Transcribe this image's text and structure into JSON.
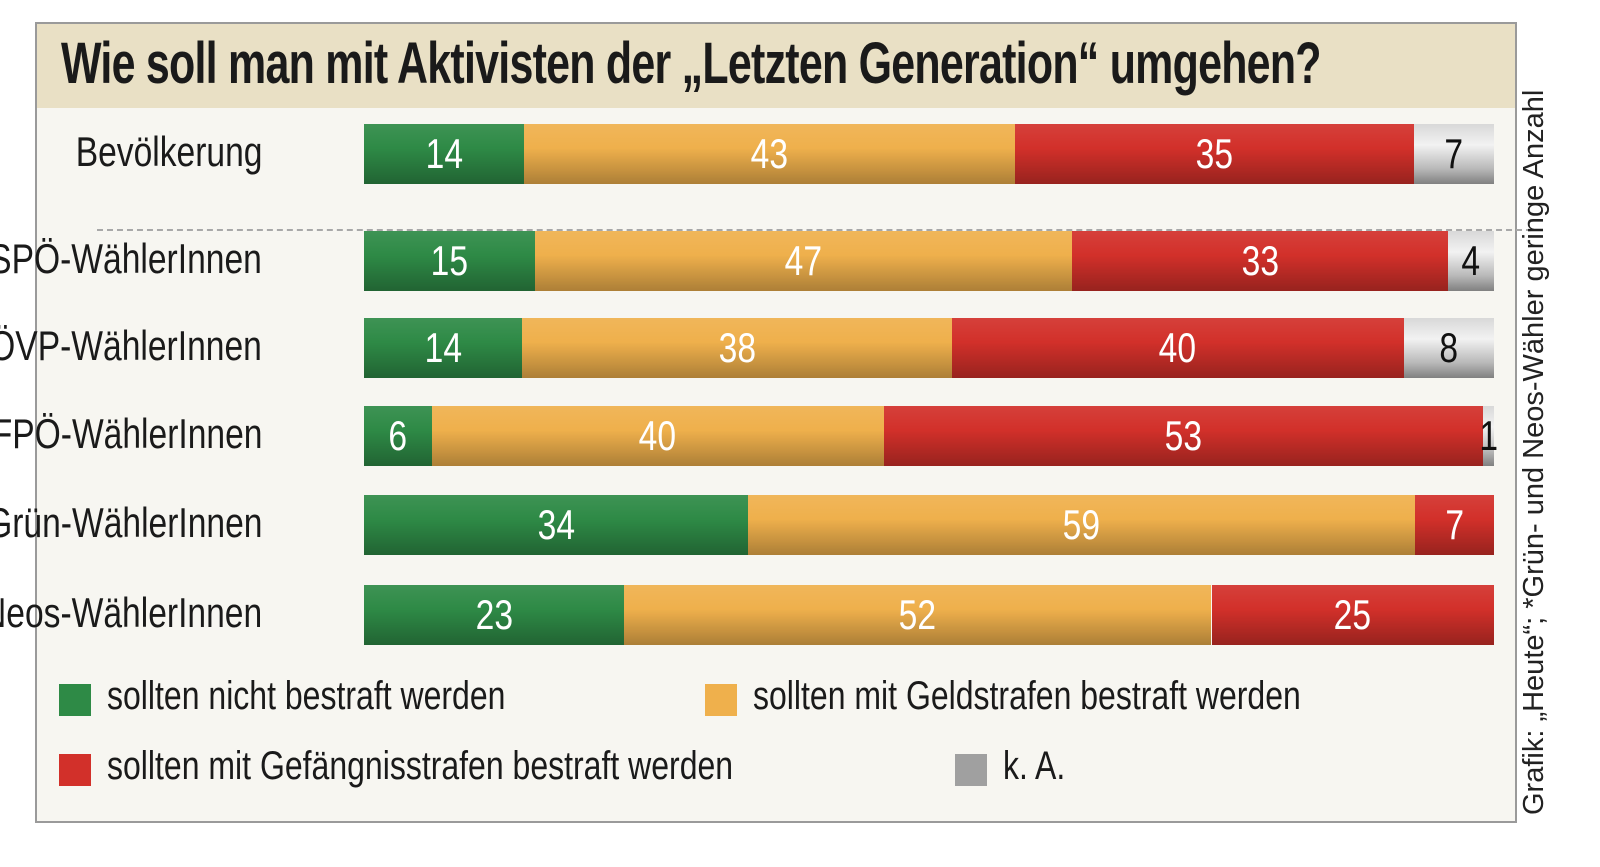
{
  "chart_data": {
    "type": "bar",
    "orientation": "horizontal",
    "stacked": true,
    "title": "Wie soll man mit Aktivisten der „Letzten Generation“ umgehen?",
    "categories": [
      "Bevölkerung",
      "SPÖ-WählerInnen",
      "ÖVP-WählerInnen",
      "FPÖ-WählerInnen",
      "Grün-WählerInnen",
      "Neos-WählerInnen"
    ],
    "series": [
      {
        "name": "sollten nicht bestraft werden",
        "color": "#2e8a46",
        "values": [
          14,
          15,
          14,
          6,
          34,
          23
        ]
      },
      {
        "name": "sollten mit Geldstrafen bestraft werden",
        "color": "#efb04c",
        "values": [
          43,
          47,
          38,
          40,
          59,
          52
        ]
      },
      {
        "name": "sollten mit Gefängnisstrafen bestraft werden",
        "color": "#d2302a",
        "values": [
          35,
          33,
          40,
          53,
          7,
          25
        ]
      },
      {
        "name": "k. A.",
        "color": "#b4b4b4",
        "values": [
          7,
          4,
          8,
          1,
          0,
          0
        ]
      }
    ],
    "legend_position": "bottom",
    "grid": false
  },
  "credit": "Grafik: „Heute“; *Grün- und Neos-Wähler geringe Anzahl"
}
